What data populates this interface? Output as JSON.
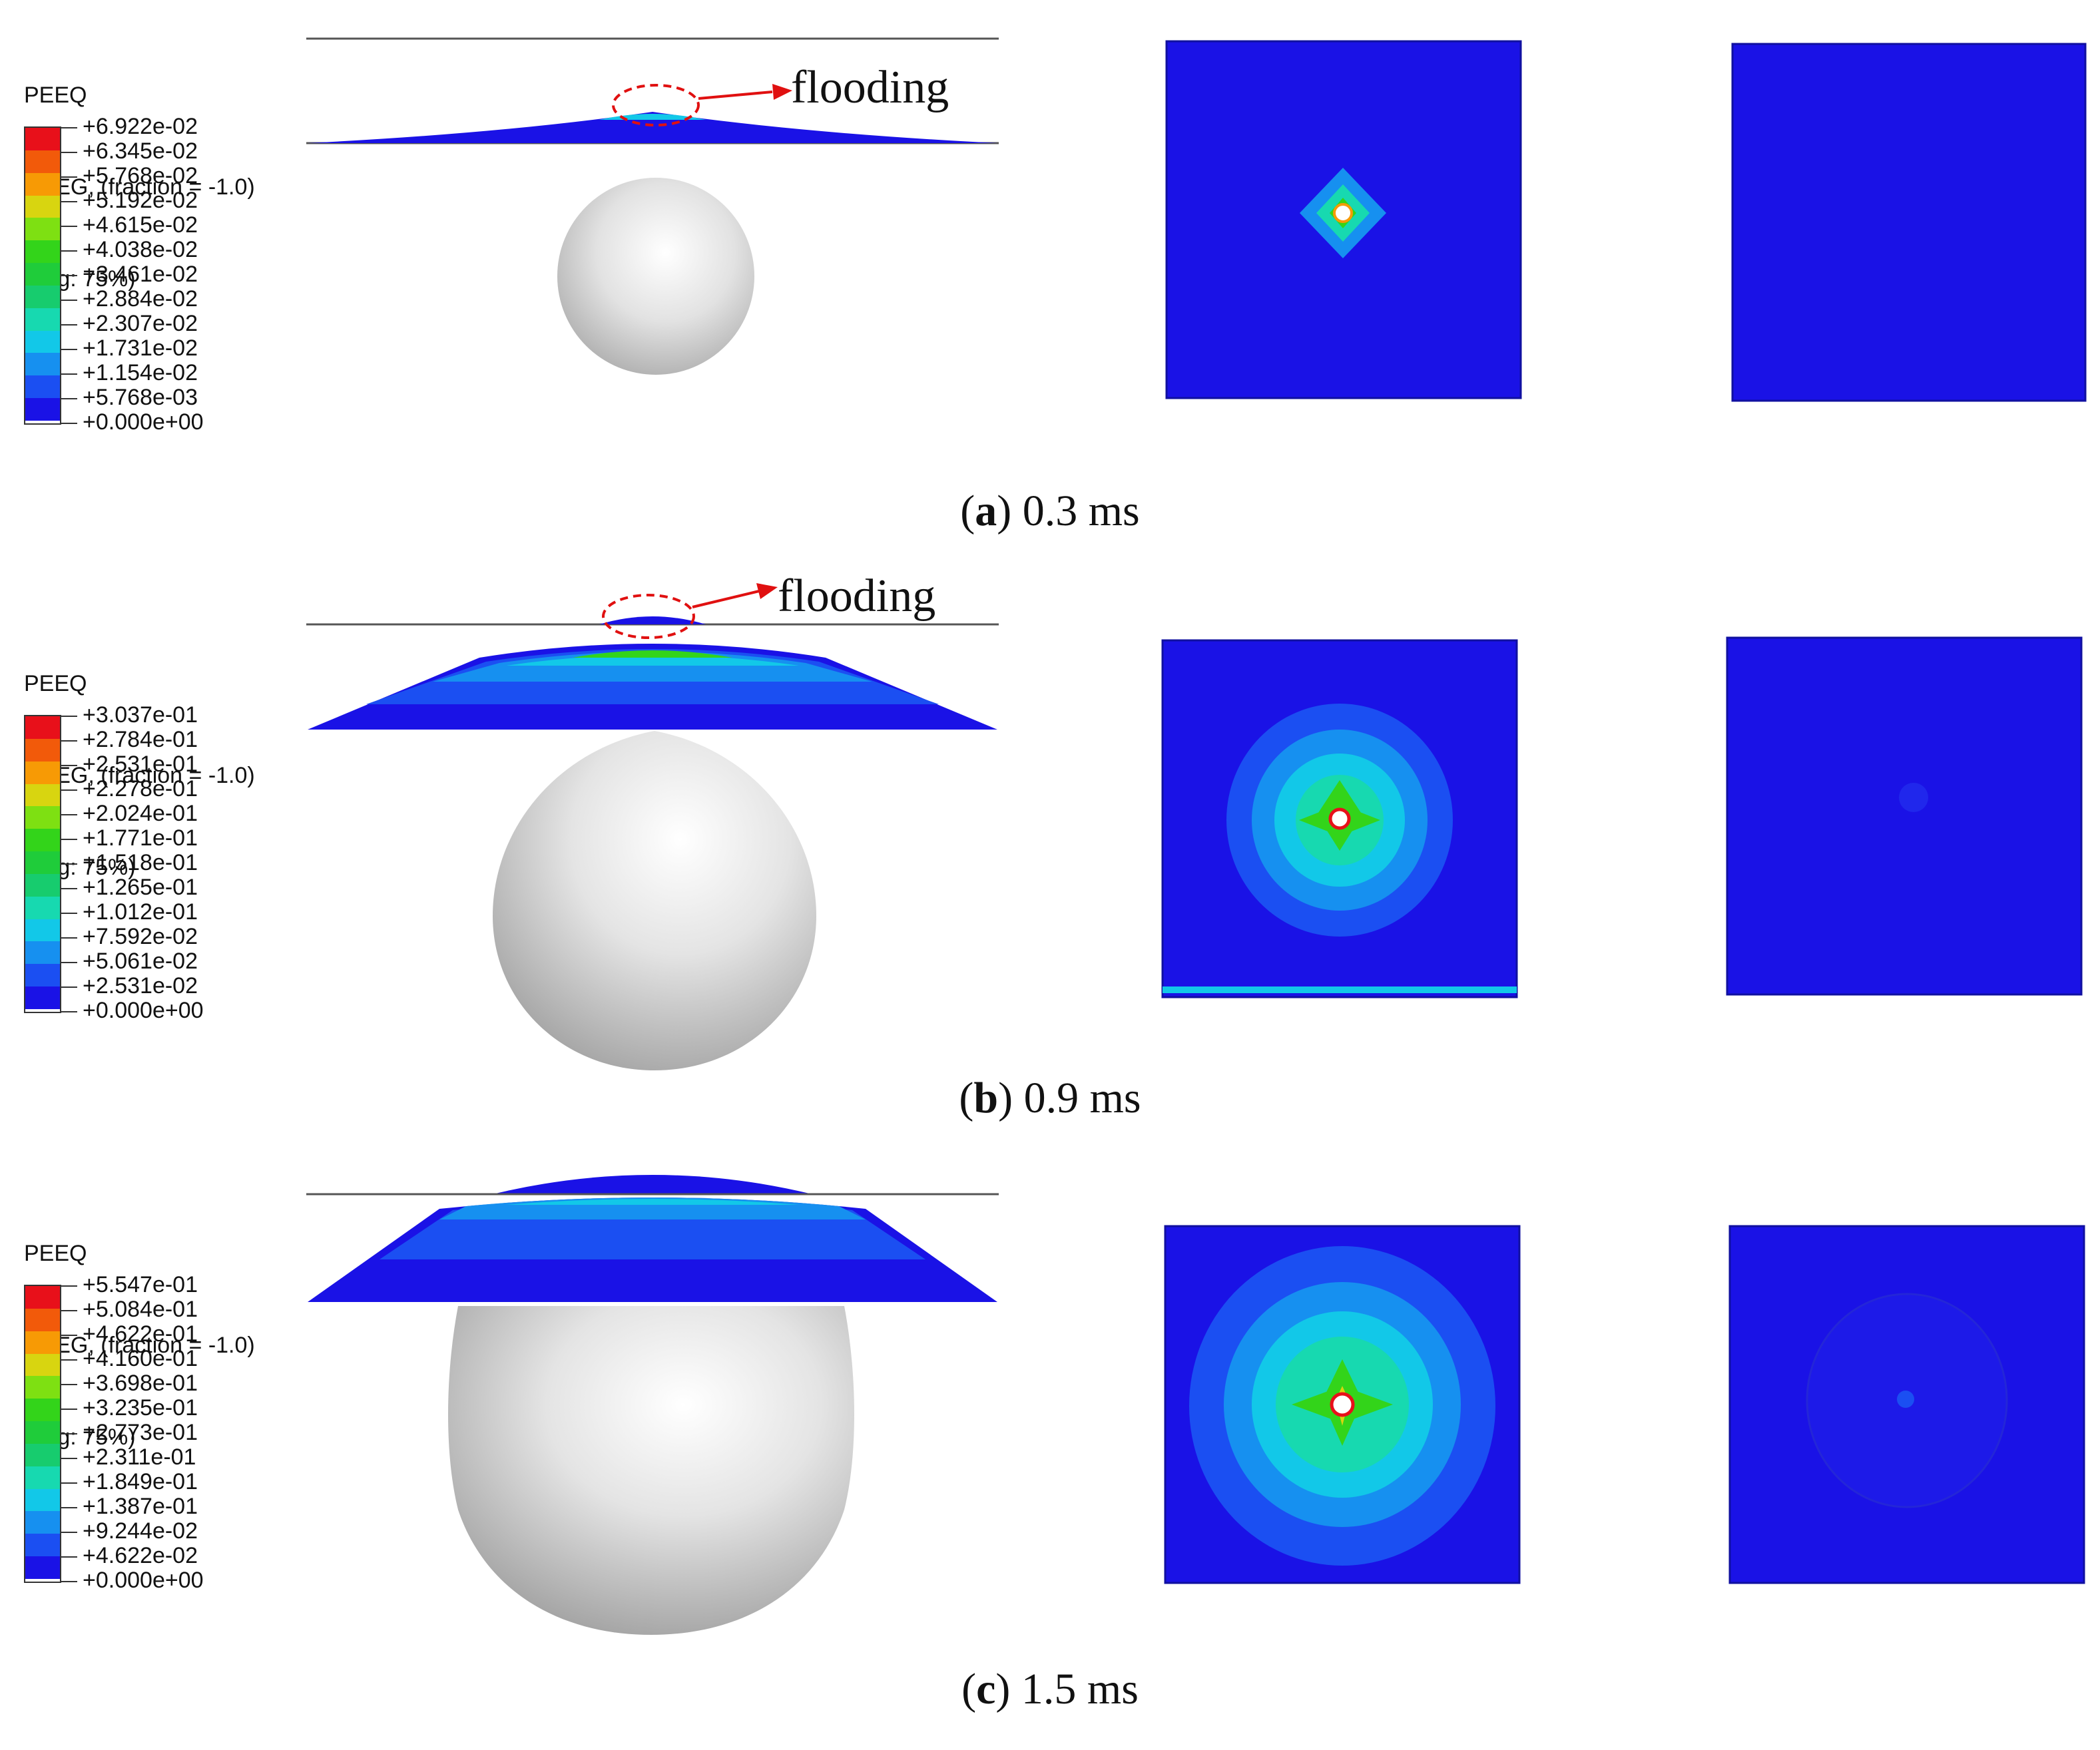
{
  "panels": [
    {
      "legend": {
        "variable": "PEEQ",
        "section": "SNEG, (fraction = -1.0)",
        "averaging": "(Avg: 75%)",
        "values": [
          "+6.922e-02",
          "+6.345e-02",
          "+5.768e-02",
          "+5.192e-02",
          "+4.615e-02",
          "+4.038e-02",
          "+3.461e-02",
          "+2.884e-02",
          "+2.307e-02",
          "+1.731e-02",
          "+1.154e-02",
          "+5.768e-03",
          "+0.000e+00"
        ]
      },
      "annotation": "flooding",
      "caption": {
        "letter": "a",
        "time": " 0.3 ms"
      }
    },
    {
      "legend": {
        "variable": "PEEQ",
        "section": "SNEG, (fraction = -1.0)",
        "averaging": "(Avg: 75%)",
        "values": [
          "+3.037e-01",
          "+2.784e-01",
          "+2.531e-01",
          "+2.278e-01",
          "+2.024e-01",
          "+1.771e-01",
          "+1.518e-01",
          "+1.265e-01",
          "+1.012e-01",
          "+7.592e-02",
          "+5.061e-02",
          "+2.531e-02",
          "+0.000e+00"
        ]
      },
      "annotation": "flooding",
      "caption": {
        "letter": "b",
        "time": " 0.9 ms"
      }
    },
    {
      "legend": {
        "variable": "PEEQ",
        "section": "SNEG, (fraction = -1.0)",
        "averaging": "(Avg: 75%)",
        "values": [
          "+5.547e-01",
          "+5.084e-01",
          "+4.622e-01",
          "+4.160e-01",
          "+3.698e-01",
          "+3.235e-01",
          "+2.773e-01",
          "+2.311e-01",
          "+1.849e-01",
          "+1.387e-01",
          "+9.244e-02",
          "+4.622e-02",
          "+0.000e+00"
        ]
      },
      "annotation": "",
      "caption": {
        "letter": "c",
        "time": " 1.5 ms"
      }
    }
  ],
  "colormap": [
    "#e8101a",
    "#f25a0a",
    "#f79a05",
    "#d8d510",
    "#7ee012",
    "#33d41a",
    "#1fcc3a",
    "#17cc6e",
    "#17d9b0",
    "#12c8e8",
    "#1690f0",
    "#1b4ff2",
    "#1a12e6"
  ]
}
